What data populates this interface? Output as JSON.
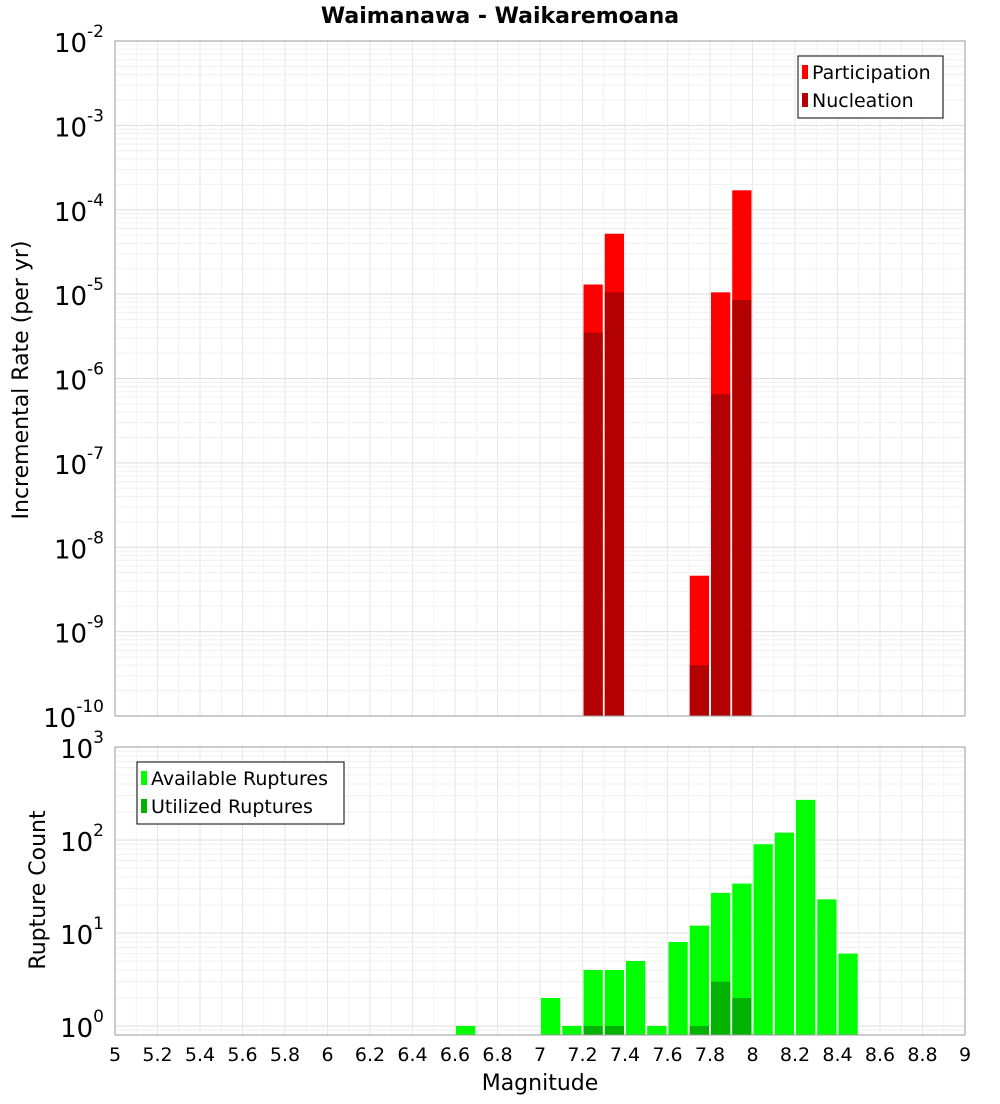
{
  "chart_data": [
    {
      "type": "bar",
      "title": "Waimanawa - Waikaremoana",
      "xlabel": "Magnitude",
      "ylabel": "Incremental Rate (per yr)",
      "xlim": [
        5,
        9
      ],
      "ylim": [
        1e-10,
        0.01
      ],
      "yscale": "log",
      "bin_width": 0.1,
      "ytick_labels": [
        {
          "base": "10",
          "exp": "-2",
          "value": 0.01
        },
        {
          "base": "10",
          "exp": "-3",
          "value": 0.001
        },
        {
          "base": "10",
          "exp": "-4",
          "value": 0.0001
        },
        {
          "base": "10",
          "exp": "-5",
          "value": 1e-05
        },
        {
          "base": "10",
          "exp": "-6",
          "value": 1e-06
        },
        {
          "base": "10",
          "exp": "-7",
          "value": 1e-07
        },
        {
          "base": "10",
          "exp": "-8",
          "value": 1e-08
        },
        {
          "base": "10",
          "exp": "-9",
          "value": 1e-09
        },
        {
          "base": "10",
          "exp": "-10",
          "value": 1e-10
        }
      ],
      "legend": {
        "position": "top-right",
        "entries": [
          "Participation",
          "Nucleation"
        ]
      },
      "series": [
        {
          "name": "Participation",
          "color": "#ff0000",
          "x": [
            7.25,
            7.35,
            7.75,
            7.85,
            7.95
          ],
          "values": [
            1.3e-05,
            5.2e-05,
            4.6e-09,
            1.05e-05,
            0.00017
          ]
        },
        {
          "name": "Nucleation",
          "color": "#b30000",
          "x": [
            7.25,
            7.35,
            7.75,
            7.85,
            7.95
          ],
          "values": [
            3.5e-06,
            1.05e-05,
            4e-10,
            6.5e-07,
            8.5e-06
          ]
        }
      ]
    },
    {
      "type": "bar",
      "xlabel": "Magnitude",
      "ylabel": "Rupture Count",
      "xlim": [
        5,
        9
      ],
      "ylim": [
        0.8,
        1000
      ],
      "yscale": "log",
      "bin_width": 0.1,
      "ytick_labels": [
        {
          "base": "10",
          "exp": "3",
          "value": 1000
        },
        {
          "base": "10",
          "exp": "2",
          "value": 100
        },
        {
          "base": "10",
          "exp": "1",
          "value": 10
        },
        {
          "base": "10",
          "exp": "0",
          "value": 1
        }
      ],
      "xtick_labels": [
        "5",
        "5.2",
        "5.4",
        "5.6",
        "5.8",
        "6",
        "6.2",
        "6.4",
        "6.6",
        "6.8",
        "7",
        "7.2",
        "7.4",
        "7.6",
        "7.8",
        "8",
        "8.2",
        "8.4",
        "8.6",
        "8.8",
        "9"
      ],
      "legend": {
        "position": "top-left",
        "entries": [
          "Available Ruptures",
          "Utilized Ruptures"
        ]
      },
      "series": [
        {
          "name": "Available Ruptures",
          "color": "#00ff00",
          "x": [
            6.65,
            7.05,
            7.15,
            7.25,
            7.35,
            7.45,
            7.55,
            7.65,
            7.75,
            7.85,
            7.95,
            8.05,
            8.15,
            8.25,
            8.35,
            8.45
          ],
          "values": [
            1,
            2,
            1,
            4,
            4,
            5,
            1,
            8,
            12,
            27,
            34,
            90,
            120,
            270,
            23,
            6
          ]
        },
        {
          "name": "Utilized Ruptures",
          "color": "#00b300",
          "x": [
            7.25,
            7.35,
            7.75,
            7.85,
            7.95
          ],
          "values": [
            1,
            1,
            1,
            3,
            2
          ]
        }
      ]
    }
  ]
}
